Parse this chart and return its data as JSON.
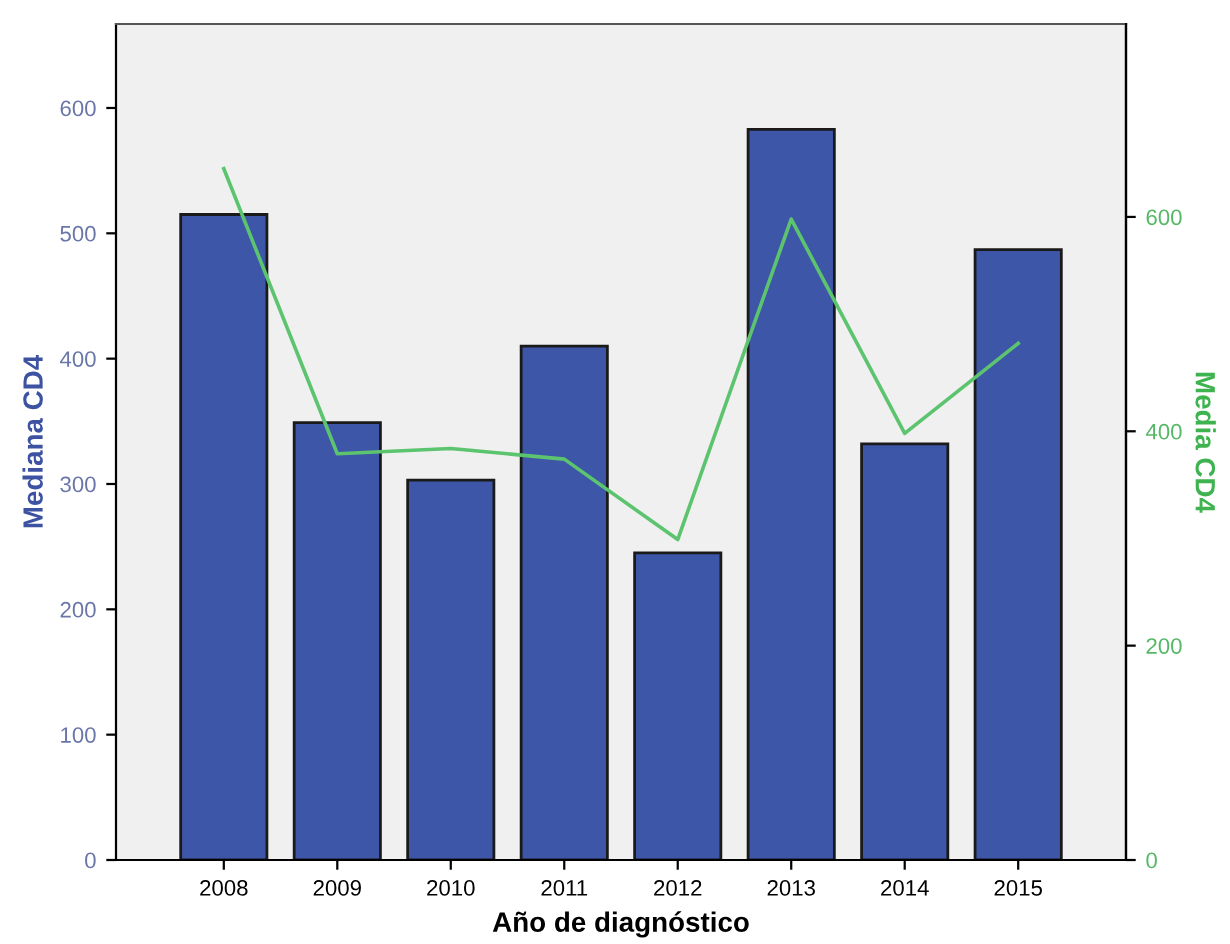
{
  "chart_data": {
    "type": "bar",
    "xlabel": "Año de diagnóstico",
    "ylabel": "Mediana CD4",
    "y2label": "Media CD4",
    "categories": [
      "2008",
      "2009",
      "2010",
      "2011",
      "2012",
      "2013",
      "2014",
      "2015"
    ],
    "series": [
      {
        "color": "#3e56a8",
        "values": [
          515,
          349,
          303,
          410,
          245,
          583,
          332,
          487
        ]
      },
      {
        "type": "line",
        "axis": "y2",
        "color": "#5cc46e",
        "values": [
          645,
          379,
          384,
          374,
          299,
          598,
          398,
          482
        ]
      }
    ],
    "ylim": [
      0,
      667
    ],
    "yticks": [
      0,
      100,
      200,
      300,
      400,
      500,
      600
    ],
    "y2lim": [
      0,
      780
    ],
    "y2ticks": [
      0,
      200,
      400,
      600
    ],
    "grid": false,
    "legend": false,
    "marker": "none",
    "line_style": "solid"
  }
}
